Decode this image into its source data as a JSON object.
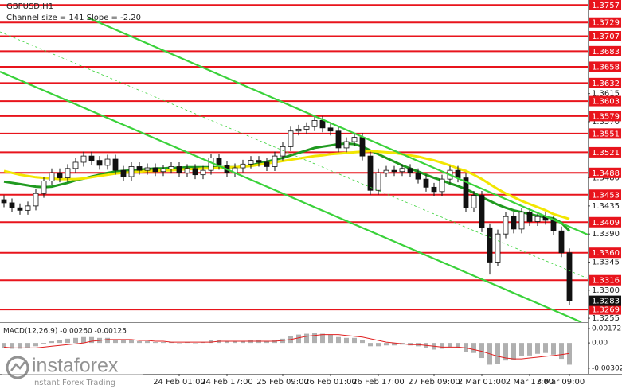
{
  "chart_data": [
    {
      "type": "candlestick",
      "title": "GBPUSD,H1",
      "subtitle": "Channel size = 141  Slope = -2.20",
      "categories": [
        null,
        null,
        null,
        null,
        null,
        null,
        null,
        null,
        null,
        null,
        null,
        null,
        null,
        null,
        null,
        null,
        null,
        null,
        null,
        null,
        null,
        null,
        "24 Feb 01:00",
        null,
        null,
        null,
        null,
        null,
        "24 Feb 17:00",
        null,
        null,
        null,
        null,
        null,
        null,
        "25 Feb 09:00",
        null,
        null,
        null,
        null,
        null,
        "26 Feb 01:00",
        null,
        null,
        null,
        null,
        null,
        "26 Feb 17:00",
        null,
        null,
        null,
        null,
        null,
        null,
        "27 Feb 09:00",
        null,
        null,
        null,
        null,
        null,
        "2 Mar 01:00",
        null,
        null,
        null,
        null,
        null,
        "2 Mar 17:00",
        null,
        null,
        null,
        null,
        "3 Mar 09:00"
      ],
      "open": [
        1.3445,
        1.344,
        1.3432,
        1.3428,
        1.3435,
        1.3455,
        1.3475,
        1.3488,
        1.348,
        1.3495,
        1.3505,
        1.3515,
        1.3508,
        1.35,
        1.351,
        1.3492,
        1.3482,
        1.3498,
        1.3492,
        1.3496,
        1.349,
        1.3494,
        1.3498,
        1.3488,
        1.3495,
        1.3485,
        1.3492,
        1.3512,
        1.35,
        1.3488,
        1.3496,
        1.3502,
        1.3508,
        1.3505,
        1.3498,
        1.3515,
        1.353,
        1.3555,
        1.3558,
        1.3562,
        1.3572,
        1.356,
        1.3555,
        1.3528,
        1.3538,
        1.3545,
        1.3515,
        1.346,
        1.3488,
        1.3492,
        1.349,
        1.3495,
        1.3488,
        1.3478,
        1.3465,
        1.3458,
        1.3478,
        1.3492,
        1.348,
        1.3432,
        1.3452,
        1.34,
        1.3345,
        1.339,
        1.3418,
        1.3398,
        1.3425,
        1.341,
        1.3418,
        1.3412,
        1.3395,
        1.336
      ],
      "high": [
        1.3452,
        1.3447,
        1.3439,
        1.3442,
        1.3462,
        1.3482,
        1.3495,
        1.3495,
        1.3502,
        1.3512,
        1.3522,
        1.3522,
        1.3515,
        1.3517,
        1.3517,
        1.3499,
        1.3505,
        1.3505,
        1.3503,
        1.3503,
        1.3501,
        1.3505,
        1.3505,
        1.3502,
        1.3502,
        1.3499,
        1.3519,
        1.3519,
        1.3507,
        1.3503,
        1.3509,
        1.3515,
        1.3515,
        1.3512,
        1.3522,
        1.3537,
        1.3562,
        1.3565,
        1.3569,
        1.3579,
        1.3579,
        1.3567,
        1.3562,
        1.3545,
        1.3552,
        1.3552,
        1.3522,
        1.3495,
        1.3499,
        1.3499,
        1.3502,
        1.3502,
        1.3495,
        1.3485,
        1.3472,
        1.3485,
        1.3499,
        1.3499,
        1.3487,
        1.3459,
        1.3459,
        1.3407,
        1.3397,
        1.3425,
        1.3425,
        1.3432,
        1.3432,
        1.3425,
        1.3425,
        1.3419,
        1.3402,
        1.3367
      ],
      "low": [
        1.3433,
        1.3425,
        1.3421,
        1.3421,
        1.3428,
        1.3448,
        1.3468,
        1.3473,
        1.3473,
        1.3488,
        1.3498,
        1.3501,
        1.3493,
        1.3493,
        1.3485,
        1.3475,
        1.3475,
        1.3485,
        1.3485,
        1.3483,
        1.3483,
        1.3487,
        1.3481,
        1.3481,
        1.3478,
        1.3478,
        1.3485,
        1.3493,
        1.3481,
        1.3481,
        1.3489,
        1.3495,
        1.3498,
        1.3491,
        1.3491,
        1.3508,
        1.3523,
        1.3548,
        1.3551,
        1.3555,
        1.3553,
        1.3548,
        1.3521,
        1.3521,
        1.3531,
        1.3508,
        1.3453,
        1.3453,
        1.3481,
        1.3483,
        1.3483,
        1.3481,
        1.3471,
        1.3458,
        1.3451,
        1.3451,
        1.3471,
        1.3473,
        1.3425,
        1.3425,
        1.3393,
        1.3325,
        1.3338,
        1.3383,
        1.3391,
        1.3391,
        1.3403,
        1.3403,
        1.3405,
        1.3388,
        1.3353,
        1.3276
      ],
      "close": [
        1.344,
        1.3432,
        1.3428,
        1.3435,
        1.3455,
        1.3475,
        1.3488,
        1.348,
        1.3495,
        1.3505,
        1.3515,
        1.3508,
        1.35,
        1.351,
        1.3492,
        1.3482,
        1.3498,
        1.3492,
        1.3496,
        1.349,
        1.3494,
        1.3498,
        1.3488,
        1.3495,
        1.3485,
        1.3492,
        1.3512,
        1.35,
        1.3488,
        1.3496,
        1.3502,
        1.3508,
        1.3505,
        1.3498,
        1.3515,
        1.353,
        1.3555,
        1.3558,
        1.3562,
        1.3572,
        1.356,
        1.3555,
        1.3528,
        1.3538,
        1.3545,
        1.3515,
        1.346,
        1.3488,
        1.3492,
        1.349,
        1.3495,
        1.3488,
        1.3478,
        1.3465,
        1.3458,
        1.3478,
        1.3492,
        1.348,
        1.3432,
        1.3452,
        1.34,
        1.3345,
        1.339,
        1.3418,
        1.3398,
        1.3425,
        1.341,
        1.3418,
        1.3412,
        1.3395,
        1.336,
        1.3283
      ],
      "overlays": [
        {
          "color": "#1f9a1f",
          "values": [
            1.3474,
            1.3472,
            1.347,
            1.3468,
            1.3466,
            1.3465,
            1.3466,
            1.3469,
            1.3472,
            1.3476,
            1.3479,
            1.3482,
            1.3485,
            1.3488,
            1.349,
            1.3491,
            1.3492,
            1.3493,
            1.3494,
            1.3495,
            1.3495,
            1.3496,
            1.3496,
            1.3497,
            1.3497,
            1.3497,
            1.3497,
            1.3497,
            1.3497,
            1.3497,
            1.3498,
            1.35,
            1.3503,
            1.3506,
            1.3509,
            1.3512,
            1.3516,
            1.352,
            1.3524,
            1.3528,
            1.353,
            1.3532,
            1.3534,
            1.3535,
            1.3534,
            1.353,
            1.3524,
            1.3518,
            1.3512,
            1.3506,
            1.35,
            1.3495,
            1.349,
            1.3485,
            1.348,
            1.3476,
            1.3471,
            1.3467,
            1.3462,
            1.3456,
            1.3449,
            1.3443,
            1.3437,
            1.3432,
            1.3428,
            1.3425,
            1.3422,
            1.3419,
            1.3417,
            1.3415,
            1.3408,
            1.3395
          ]
        },
        {
          "color": "#f2e600",
          "values": [
            1.3491,
            1.3488,
            1.3485,
            1.3483,
            1.3481,
            1.348,
            1.3479,
            1.3478,
            1.3478,
            1.3478,
            1.3479,
            1.3481,
            1.3483,
            1.3485,
            1.3487,
            1.3488,
            1.3489,
            1.349,
            1.3491,
            1.3491,
            1.3492,
            1.3492,
            1.3493,
            1.3494,
            1.3494,
            1.3495,
            1.3495,
            1.3496,
            1.3497,
            1.3497,
            1.3498,
            1.3499,
            1.3501,
            1.3503,
            1.3505,
            1.3507,
            1.3509,
            1.3511,
            1.3513,
            1.3515,
            1.3516,
            1.3518,
            1.3519,
            1.352,
            1.3521,
            1.3522,
            1.3523,
            1.3522,
            1.3521,
            1.352,
            1.3518,
            1.3516,
            1.3514,
            1.3511,
            1.3508,
            1.3504,
            1.35,
            1.3495,
            1.3491,
            1.3485,
            1.3478,
            1.347,
            1.3462,
            1.3455,
            1.3449,
            1.3443,
            1.3438,
            1.3433,
            1.3428,
            1.3422,
            1.3418,
            1.3414
          ]
        }
      ],
      "ylim": [
        1.325,
        1.3765
      ],
      "yticks": [
        1.3615,
        {
          "value": 1.357,
          "label": "1.3570"
        },
        {
          "value": 1.348,
          "label": "1.3480"
        },
        1.3435,
        {
          "value": 1.339,
          "label": "1.3390"
        },
        1.3345,
        {
          "value": 1.33,
          "label": "1.3300"
        },
        1.3255
      ],
      "levels": {
        "color": "#e8141c",
        "values": [
          1.3757,
          1.3729,
          1.3707,
          1.3683,
          1.3658,
          1.3632,
          1.3603,
          1.3579,
          1.3551,
          1.3521,
          1.3488,
          1.3453,
          1.3409,
          {
            "value": 1.336,
            "label": "1.3360"
          },
          1.3316,
          1.3269
        ]
      },
      "last_price": 1.3283,
      "grid": false
    },
    {
      "type": "macd",
      "title": "MACD(12,26,9) -0.00260 -0.00125",
      "ylim": [
        -0.0037,
        0.0022
      ],
      "yticks": [
        0.00172,
        {
          "value": 0,
          "label": "0.00"
        },
        -0.00302
      ],
      "histogram": {
        "color": "#b0b0b0",
        "values": [
          -0.0006,
          -0.0007,
          -0.0007,
          -0.0006,
          -0.0004,
          -0.0001,
          0.0002,
          0.0003,
          0.0005,
          0.0006,
          0.0007,
          0.0007,
          0.0006,
          0.0006,
          0.0004,
          0.0003,
          0.0003,
          0.0002,
          0.0002,
          0.0001,
          0.0001,
          0.0001,
          0.0,
          0.0001,
          0.0,
          0.0001,
          0.0003,
          0.0003,
          0.0002,
          0.0002,
          0.0002,
          0.0003,
          0.0003,
          0.0002,
          0.0003,
          0.0005,
          0.0008,
          0.001,
          0.0011,
          0.0012,
          0.0011,
          0.001,
          0.0007,
          0.0006,
          0.0006,
          0.0003,
          -0.0004,
          -0.0004,
          -0.0003,
          -0.0003,
          -0.0002,
          -0.0003,
          -0.0004,
          -0.0006,
          -0.0008,
          -0.0007,
          -0.0005,
          -0.0006,
          -0.0011,
          -0.0012,
          -0.0018,
          -0.0026,
          -0.0025,
          -0.0021,
          -0.002,
          -0.0016,
          -0.0015,
          -0.0013,
          -0.0012,
          -0.0014,
          -0.0019,
          -0.0026
        ]
      },
      "signal": {
        "color": "#e02020",
        "values": [
          -0.0005,
          -0.0006,
          -0.0006,
          -0.0006,
          -0.0006,
          -0.0005,
          -0.0004,
          -0.0003,
          -0.0002,
          -0.0001,
          0.0,
          0.0002,
          0.0003,
          0.0004,
          0.0004,
          0.0004,
          0.0004,
          0.0003,
          0.0003,
          0.0002,
          0.0002,
          0.0001,
          0.0001,
          0.0001,
          0.0001,
          0.0001,
          0.0001,
          0.0002,
          0.0002,
          0.0002,
          0.0002,
          0.0002,
          0.0002,
          0.0002,
          0.0002,
          0.0003,
          0.0004,
          0.0006,
          0.0008,
          0.0009,
          0.001,
          0.001,
          0.001,
          0.0009,
          0.0008,
          0.0007,
          0.0005,
          0.0003,
          0.0001,
          0.0,
          -0.0001,
          -0.0002,
          -0.0002,
          -0.0003,
          -0.0004,
          -0.0005,
          -0.0005,
          -0.0005,
          -0.0006,
          -0.0008,
          -0.001,
          -0.0013,
          -0.0016,
          -0.0018,
          -0.0019,
          -0.0019,
          -0.0018,
          -0.0017,
          -0.0016,
          -0.0015,
          -0.0014,
          -0.00125
        ]
      }
    }
  ],
  "brand": {
    "name": "instaforex",
    "tagline": "Instant Forex Trading"
  }
}
